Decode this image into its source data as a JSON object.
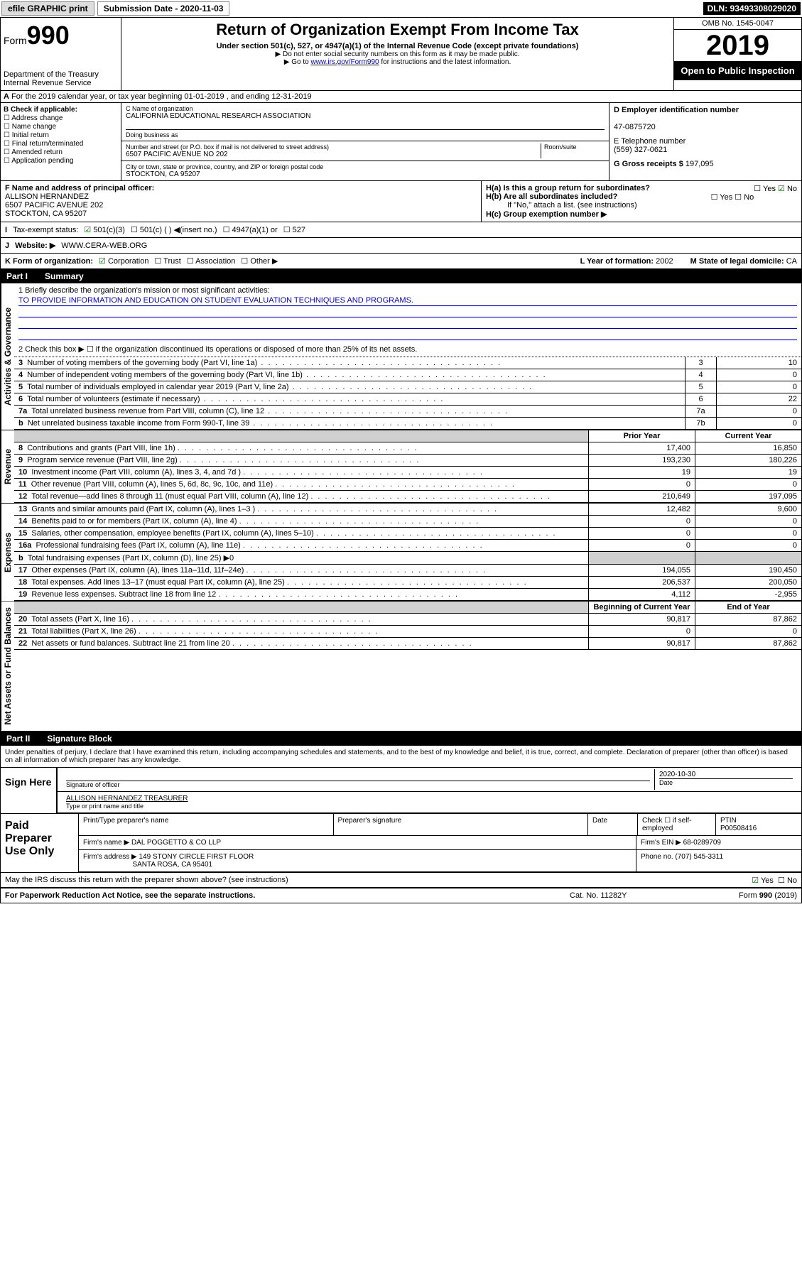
{
  "topbar": {
    "efile": "efile GRAPHIC print",
    "submission": "Submission Date - 2020-11-03",
    "dln": "DLN: 93493308029020"
  },
  "header": {
    "form": "Form",
    "form_no": "990",
    "dept1": "Department of the Treasury",
    "dept2": "Internal Revenue Service",
    "title": "Return of Organization Exempt From Income Tax",
    "sub1": "Under section 501(c), 527, or 4947(a)(1) of the Internal Revenue Code (except private foundations)",
    "sub2": "Do not enter social security numbers on this form as it may be made public.",
    "sub3_pre": "Go to ",
    "sub3_link": "www.irs.gov/Form990",
    "sub3_post": " for instructions and the latest information.",
    "omb": "OMB No. 1545-0047",
    "year": "2019",
    "open": "Open to Public Inspection"
  },
  "rowA": "For the 2019 calendar year, or tax year beginning 01-01-2019    , and ending 12-31-2019",
  "checkB": {
    "title": "B Check if applicable:",
    "items": [
      "Address change",
      "Name change",
      "Initial return",
      "Final return/terminated",
      "Amended return",
      "Application pending"
    ]
  },
  "colC": {
    "name_label": "C Name of organization",
    "name": "CALIFORNIA EDUCATIONAL RESEARCH ASSOCIATION",
    "dba_label": "Doing business as",
    "addr_label": "Number and street (or P.O. box if mail is not delivered to street address)",
    "room_label": "Room/suite",
    "addr": "6507 PACIFIC AVENUE NO 202",
    "city_label": "City or town, state or province, country, and ZIP or foreign postal code",
    "city": "STOCKTON, CA  95207"
  },
  "colD": {
    "ein_label": "D Employer identification number",
    "ein": "47-0875720",
    "tel_label": "E Telephone number",
    "tel": "(559) 327-0621",
    "gross_label": "G Gross receipts $",
    "gross": "197,095"
  },
  "rowF": {
    "label": "F  Name and address of principal officer:",
    "name": "ALLISON HERNANDEZ",
    "addr1": "6507 PACIFIC AVENUE 202",
    "addr2": "STOCKTON, CA  95207"
  },
  "rowH": {
    "ha": "H(a)  Is this a group return for subordinates?",
    "hb": "H(b)  Are all subordinates included?",
    "hb_note": "If \"No,\" attach a list. (see instructions)",
    "hc": "H(c)  Group exemption number ▶"
  },
  "rowI": {
    "label": "Tax-exempt status:",
    "o1": "501(c)(3)",
    "o2": "501(c) (  ) ◀(insert no.)",
    "o3": "4947(a)(1) or",
    "o4": "527"
  },
  "rowJ": {
    "label": "Website: ▶",
    "val": "WWW.CERA-WEB.ORG"
  },
  "rowK": {
    "label": "K Form of organization:",
    "o1": "Corporation",
    "o2": "Trust",
    "o3": "Association",
    "o4": "Other ▶",
    "l_label": "L Year of formation:",
    "l_val": "2002",
    "m_label": "M State of legal domicile:",
    "m_val": "CA"
  },
  "part1": {
    "tag": "Part I",
    "title": "Summary"
  },
  "mission": {
    "line1_label": "1  Briefly describe the organization's mission or most significant activities:",
    "line1_text": "TO PROVIDE INFORMATION AND EDUCATION ON STUDENT EVALUATION TECHNIQUES AND PROGRAMS.",
    "line2": "2   Check this box ▶ ☐  if the organization discontinued its operations or disposed of more than 25% of its net assets."
  },
  "governance_rows": [
    {
      "n": "3",
      "label": "Number of voting members of the governing body (Part VI, line 1a)",
      "box": "3",
      "val": "10"
    },
    {
      "n": "4",
      "label": "Number of independent voting members of the governing body (Part VI, line 1b)",
      "box": "4",
      "val": "0"
    },
    {
      "n": "5",
      "label": "Total number of individuals employed in calendar year 2019 (Part V, line 2a)",
      "box": "5",
      "val": "0"
    },
    {
      "n": "6",
      "label": "Total number of volunteers (estimate if necessary)",
      "box": "6",
      "val": "22"
    },
    {
      "n": "7a",
      "label": "Total unrelated business revenue from Part VIII, column (C), line 12",
      "box": "7a",
      "val": "0"
    },
    {
      "n": "b",
      "label": "Net unrelated business taxable income from Form 990-T, line 39",
      "box": "7b",
      "val": "0"
    }
  ],
  "col_headers1": {
    "a": "Prior Year",
    "b": "Current Year"
  },
  "revenue_rows": [
    {
      "n": "8",
      "label": "Contributions and grants (Part VIII, line 1h)",
      "a": "17,400",
      "b": "16,850"
    },
    {
      "n": "9",
      "label": "Program service revenue (Part VIII, line 2g)",
      "a": "193,230",
      "b": "180,226"
    },
    {
      "n": "10",
      "label": "Investment income (Part VIII, column (A), lines 3, 4, and 7d )",
      "a": "19",
      "b": "19"
    },
    {
      "n": "11",
      "label": "Other revenue (Part VIII, column (A), lines 5, 6d, 8c, 9c, 10c, and 11e)",
      "a": "0",
      "b": "0"
    },
    {
      "n": "12",
      "label": "Total revenue—add lines 8 through 11 (must equal Part VIII, column (A), line 12)",
      "a": "210,649",
      "b": "197,095"
    }
  ],
  "expense_rows": [
    {
      "n": "13",
      "label": "Grants and similar amounts paid (Part IX, column (A), lines 1–3 )",
      "a": "12,482",
      "b": "9,600"
    },
    {
      "n": "14",
      "label": "Benefits paid to or for members (Part IX, column (A), line 4)",
      "a": "0",
      "b": "0"
    },
    {
      "n": "15",
      "label": "Salaries, other compensation, employee benefits (Part IX, column (A), lines 5–10)",
      "a": "0",
      "b": "0"
    },
    {
      "n": "16a",
      "label": "Professional fundraising fees (Part IX, column (A), line 11e)",
      "a": "0",
      "b": "0"
    },
    {
      "n": "b",
      "label": "Total fundraising expenses (Part IX, column (D), line 25) ▶0",
      "a": "",
      "b": "",
      "shade": true
    },
    {
      "n": "17",
      "label": "Other expenses (Part IX, column (A), lines 11a–11d, 11f–24e)",
      "a": "194,055",
      "b": "190,450"
    },
    {
      "n": "18",
      "label": "Total expenses. Add lines 13–17 (must equal Part IX, column (A), line 25)",
      "a": "206,537",
      "b": "200,050"
    },
    {
      "n": "19",
      "label": "Revenue less expenses. Subtract line 18 from line 12",
      "a": "4,112",
      "b": "-2,955"
    }
  ],
  "col_headers2": {
    "a": "Beginning of Current Year",
    "b": "End of Year"
  },
  "netassets_rows": [
    {
      "n": "20",
      "label": "Total assets (Part X, line 16)",
      "a": "90,817",
      "b": "87,862"
    },
    {
      "n": "21",
      "label": "Total liabilities (Part X, line 26)",
      "a": "0",
      "b": "0"
    },
    {
      "n": "22",
      "label": "Net assets or fund balances. Subtract line 21 from line 20",
      "a": "90,817",
      "b": "87,862"
    }
  ],
  "part2": {
    "tag": "Part II",
    "title": "Signature Block"
  },
  "perjury": "Under penalties of perjury, I declare that I have examined this return, including accompanying schedules and statements, and to the best of my knowledge and belief, it is true, correct, and complete. Declaration of preparer (other than officer) is based on all information of which preparer has any knowledge.",
  "sign": {
    "left": "Sign Here",
    "date": "2020-10-30",
    "sig_label": "Signature of officer",
    "date_label": "Date",
    "name": "ALLISON HERNANDEZ TREASURER",
    "name_label": "Type or print name and title"
  },
  "paid": {
    "left": "Paid Preparer Use Only",
    "h1": "Print/Type preparer's name",
    "h2": "Preparer's signature",
    "h3": "Date",
    "h4_a": "Check ☐ if self-employed",
    "h5": "PTIN",
    "ptin": "P00508416",
    "firm_label": "Firm's name    ▶",
    "firm": "DAL POGGETTO & CO LLP",
    "ein_label": "Firm's EIN ▶",
    "ein": "68-0289709",
    "addr_label": "Firm's address ▶",
    "addr1": "149 STONY CIRCLE FIRST FLOOR",
    "addr2": "SANTA ROSA, CA  95401",
    "phone_label": "Phone no.",
    "phone": "(707) 545-3311"
  },
  "discuss": "May the IRS discuss this return with the preparer shown above? (see instructions)",
  "footer": {
    "left": "For Paperwork Reduction Act Notice, see the separate instructions.",
    "mid": "Cat. No. 11282Y",
    "right": "Form 990 (2019)"
  },
  "vlabels": {
    "gov": "Activities & Governance",
    "rev": "Revenue",
    "exp": "Expenses",
    "net": "Net Assets or Fund Balances"
  },
  "yesno": {
    "yes": "Yes",
    "no": "No"
  }
}
